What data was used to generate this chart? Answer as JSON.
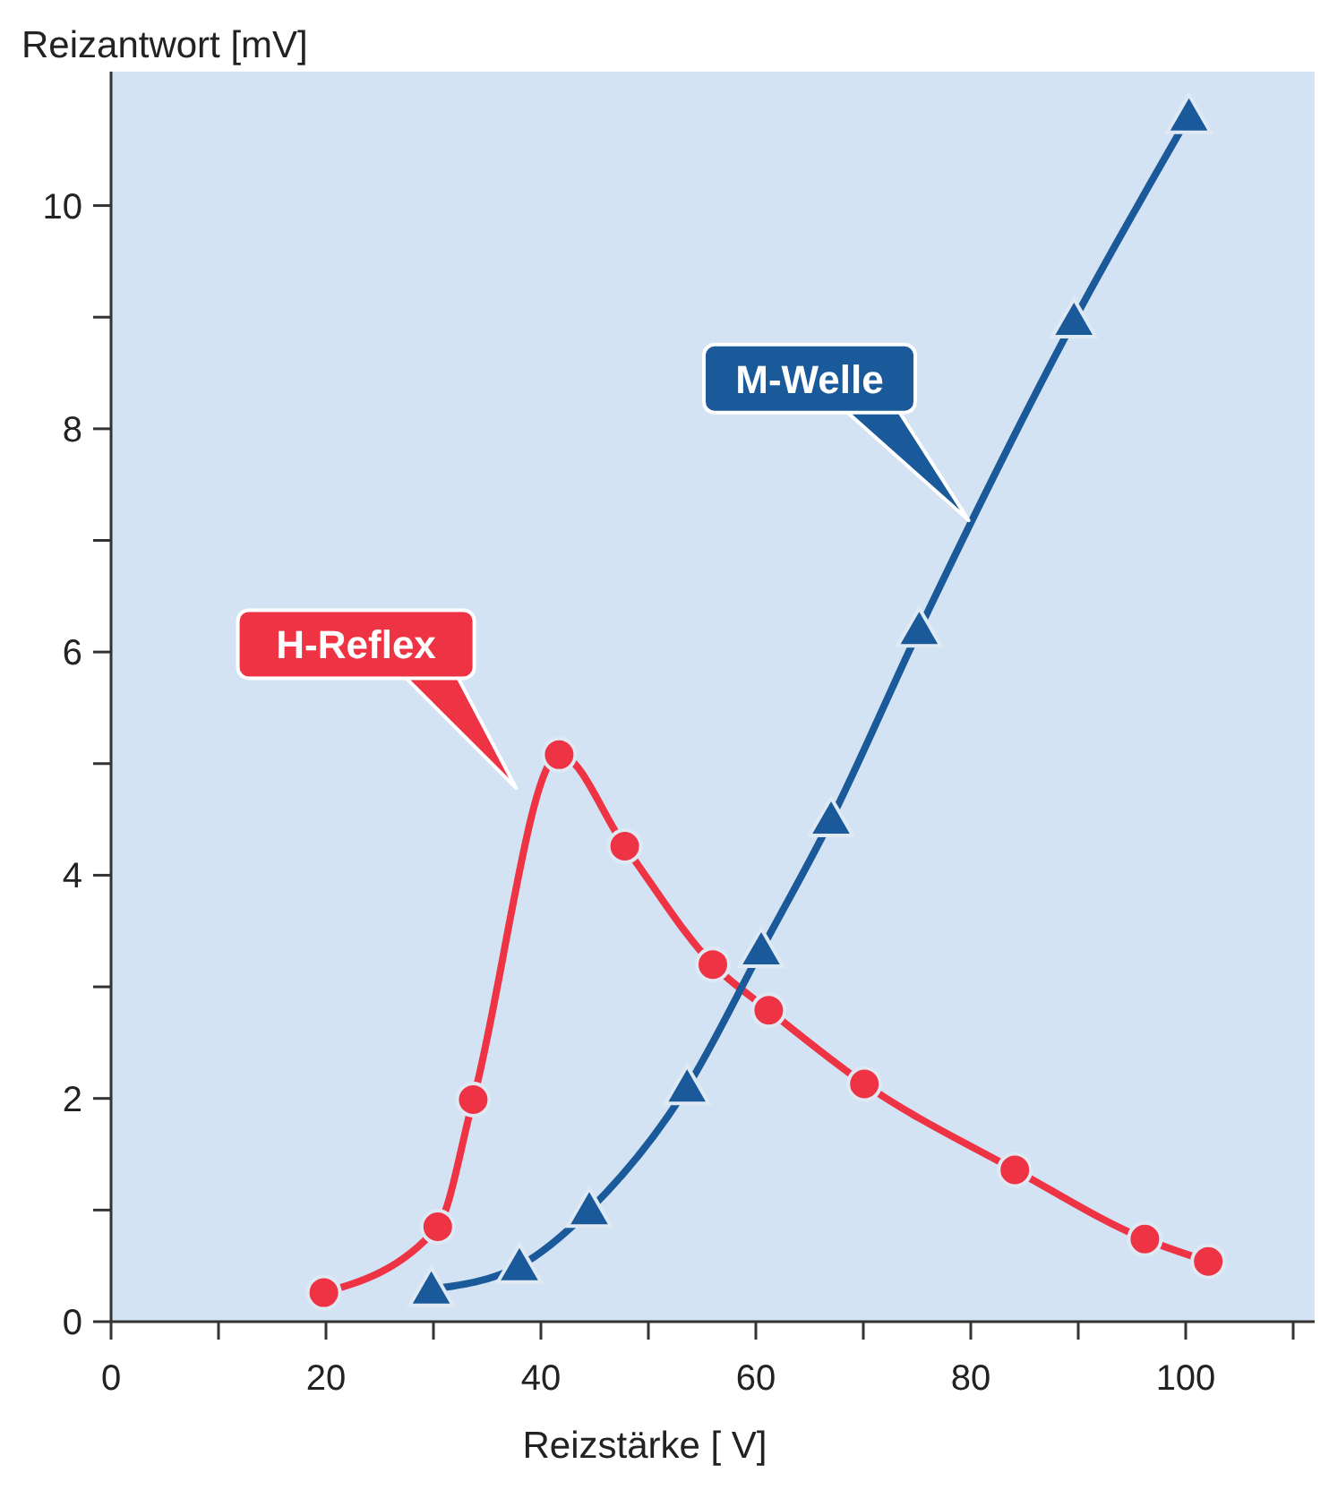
{
  "chart_data": {
    "type": "line",
    "xlabel": "Reizstärke [ V]",
    "ylabel": "Reizantwort [mV]",
    "xlim": [
      0,
      112
    ],
    "xticks": [
      0,
      {
        "value": 10,
        "label": null
      },
      20,
      {
        "value": 30,
        "label": null
      },
      40,
      {
        "value": 50,
        "label": null
      },
      60,
      {
        "value": 70,
        "label": null
      },
      80,
      {
        "value": 90,
        "label": null
      },
      100,
      {
        "value": 110,
        "label": null
      }
    ],
    "ylim": [
      0,
      11.2
    ],
    "yticks": [
      0,
      {
        "value": 1,
        "label": null
      },
      2,
      {
        "value": 3,
        "label": null
      },
      4,
      {
        "value": 5,
        "label": null
      },
      6,
      {
        "value": 7,
        "label": null
      },
      8,
      {
        "value": 9,
        "label": null
      },
      10
    ],
    "grid": false,
    "legend": false,
    "line_style": "solid",
    "series": [
      {
        "name": "H-Reflex",
        "color": "#ee3344",
        "marker": "circle",
        "x": [
          19.8,
          30.4,
          33.7,
          41.7,
          47.8,
          56,
          61.2,
          70.1,
          84.1,
          96.2,
          102.1
        ],
        "values": [
          0.26,
          0.85,
          1.99,
          5.08,
          4.26,
          3.2,
          2.79,
          2.13,
          1.36,
          0.74,
          0.54
        ]
      },
      {
        "name": "M-Welle",
        "color": "#1a5a9a",
        "marker": "triangle",
        "x": [
          29.8,
          38,
          44.5,
          53.6,
          60.5,
          67,
          75.2,
          89.6,
          100.3
        ],
        "values": [
          0.29,
          0.5,
          1.0,
          2.1,
          3.33,
          4.5,
          6.2,
          8.97,
          10.8
        ]
      }
    ]
  }
}
